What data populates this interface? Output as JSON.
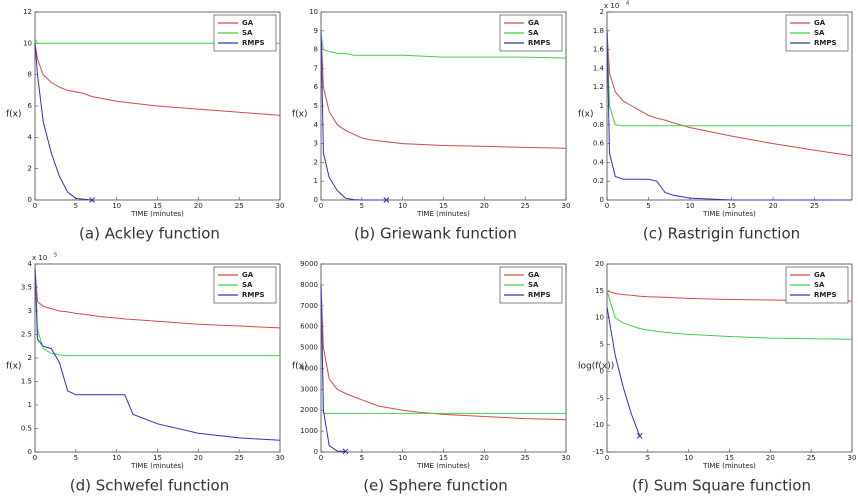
{
  "chart_data": [
    {
      "type": "line",
      "caption": "(a) Ackley function",
      "xlabel": "TIME (minutes)",
      "ylabel": "f(x)",
      "legend": "upper right",
      "x": [
        0,
        0.3,
        1,
        2,
        3,
        4,
        5,
        6,
        7,
        10,
        15,
        20,
        25,
        30
      ],
      "series": [
        {
          "name": "GA",
          "color": "#d04a4a",
          "values": [
            10,
            9,
            8,
            7.5,
            7.2,
            7,
            6.9,
            6.8,
            6.6,
            6.3,
            6.0,
            5.8,
            5.6,
            5.4
          ]
        },
        {
          "name": "SA",
          "color": "#40d040",
          "values": [
            10.3,
            10,
            10,
            10,
            10,
            10,
            10,
            10,
            10,
            10,
            10,
            10,
            10,
            10
          ]
        },
        {
          "name": "RMPS",
          "color": "#3030c0",
          "end_marker": true,
          "values": [
            10,
            8,
            5,
            3,
            1.5,
            0.5,
            0.1,
            0.05,
            0,
            null,
            null,
            null,
            null,
            null
          ]
        }
      ],
      "xlim": [
        0,
        30
      ],
      "xticks": [
        0,
        5,
        10,
        15,
        20,
        25,
        30
      ],
      "ylim": [
        0,
        12
      ],
      "yticks": [
        0,
        2,
        4,
        6,
        8,
        10,
        12
      ]
    },
    {
      "type": "line",
      "caption": "(b) Griewank function",
      "xlabel": "TIME (minutes)",
      "ylabel": "f(x)",
      "legend": "upper right",
      "x": [
        0,
        0.3,
        1,
        2,
        3,
        4,
        5,
        6,
        8,
        10,
        15,
        20,
        25,
        30
      ],
      "series": [
        {
          "name": "GA",
          "color": "#d04a4a",
          "values": [
            9,
            6,
            4.7,
            4,
            3.7,
            3.5,
            3.3,
            3.2,
            3.1,
            3.0,
            2.9,
            2.85,
            2.8,
            2.75
          ]
        },
        {
          "name": "SA",
          "color": "#40d040",
          "values": [
            8.8,
            8,
            7.9,
            7.8,
            7.8,
            7.7,
            7.7,
            7.7,
            7.7,
            7.7,
            7.6,
            7.6,
            7.6,
            7.55
          ]
        },
        {
          "name": "RMPS",
          "color": "#3030c0",
          "end_marker": true,
          "values": [
            9,
            2.5,
            1.2,
            0.5,
            0.1,
            0.02,
            0,
            0,
            0,
            null,
            null,
            null,
            null,
            null
          ]
        }
      ],
      "xlim": [
        0,
        30
      ],
      "xticks": [
        0,
        5,
        10,
        15,
        20,
        25,
        30
      ],
      "ylim": [
        0,
        10
      ],
      "yticks": [
        0,
        1,
        2,
        3,
        4,
        5,
        6,
        7,
        8,
        9,
        10
      ]
    },
    {
      "type": "line",
      "caption": "(c) Rastrigin function",
      "xlabel": "TIME (minutes)",
      "ylabel": "f(x)",
      "legend": "upper right",
      "y_multiplier": "x 10",
      "y_multiplier_exp": "4",
      "x": [
        0,
        0.3,
        1,
        2,
        3,
        4,
        5,
        6,
        7,
        8,
        10,
        15,
        20,
        25,
        29.5
      ],
      "series": [
        {
          "name": "GA",
          "color": "#d04a4a",
          "values": [
            1.8,
            1.35,
            1.15,
            1.05,
            1.0,
            0.95,
            0.9,
            0.87,
            0.85,
            0.82,
            0.77,
            0.68,
            0.6,
            0.53,
            0.47
          ]
        },
        {
          "name": "SA",
          "color": "#40d040",
          "values": [
            1.8,
            1.0,
            0.8,
            0.79,
            0.79,
            0.79,
            0.79,
            0.79,
            0.79,
            0.79,
            0.79,
            0.79,
            0.79,
            0.79,
            0.79
          ]
        },
        {
          "name": "RMPS",
          "color": "#3030c0",
          "values": [
            1.8,
            0.5,
            0.25,
            0.22,
            0.22,
            0.22,
            0.22,
            0.2,
            0.08,
            0.05,
            0.02,
            0,
            0,
            0,
            0
          ]
        }
      ],
      "xlim": [
        0,
        29.5
      ],
      "xticks": [
        0,
        5,
        10,
        15,
        20,
        25
      ],
      "ylim": [
        0,
        2
      ],
      "yticks": [
        0,
        0.2,
        0.4,
        0.6,
        0.8,
        1,
        1.2,
        1.4,
        1.6,
        1.8,
        2
      ]
    },
    {
      "type": "line",
      "caption": "(d) Schwefel function",
      "xlabel": "TIME (minutes)",
      "ylabel": "f(x)",
      "legend": "upper right",
      "y_multiplier": "x 10",
      "y_multiplier_exp": "5",
      "x": [
        0,
        0.3,
        1,
        2,
        3,
        4,
        5,
        6,
        8,
        10,
        11,
        12,
        15,
        20,
        25,
        30
      ],
      "series": [
        {
          "name": "GA",
          "color": "#d04a4a",
          "values": [
            3.9,
            3.2,
            3.1,
            3.05,
            3.0,
            2.98,
            2.95,
            2.93,
            2.88,
            2.85,
            2.83,
            2.82,
            2.78,
            2.72,
            2.68,
            2.64
          ]
        },
        {
          "name": "SA",
          "color": "#40d040",
          "values": [
            3.9,
            2.6,
            2.2,
            2.1,
            2.07,
            2.05,
            2.05,
            2.05,
            2.05,
            2.05,
            2.05,
            2.05,
            2.05,
            2.05,
            2.05,
            2.05
          ]
        },
        {
          "name": "RMPS",
          "color": "#3030c0",
          "values": [
            3.9,
            2.4,
            2.25,
            2.2,
            1.9,
            1.3,
            1.22,
            1.22,
            1.22,
            1.22,
            1.22,
            0.8,
            0.6,
            0.4,
            0.3,
            0.25
          ]
        }
      ],
      "xlim": [
        0,
        30
      ],
      "xticks": [
        0,
        5,
        10,
        15,
        20,
        25,
        30
      ],
      "ylim": [
        0,
        4
      ],
      "yticks": [
        0,
        0.5,
        1,
        1.5,
        2,
        2.5,
        3,
        3.5,
        4
      ]
    },
    {
      "type": "line",
      "caption": "(e) Sphere function",
      "xlabel": "TIME (minutes)",
      "ylabel": "f(x)",
      "legend": "upper right",
      "x": [
        0,
        0.3,
        1,
        2,
        3,
        5,
        7,
        10,
        12,
        15,
        20,
        25,
        30
      ],
      "series": [
        {
          "name": "GA",
          "color": "#d04a4a",
          "values": [
            8000,
            5000,
            3500,
            3000,
            2800,
            2500,
            2200,
            2000,
            1900,
            1800,
            1700,
            1600,
            1550
          ]
        },
        {
          "name": "SA",
          "color": "#40d040",
          "values": [
            8000,
            1850,
            1850,
            1850,
            1850,
            1850,
            1850,
            1850,
            1850,
            1850,
            1850,
            1850,
            1850
          ]
        },
        {
          "name": "RMPS",
          "color": "#3030c0",
          "end_marker": true,
          "values": [
            8000,
            2000,
            300,
            50,
            30,
            null,
            null,
            null,
            null,
            null,
            null,
            null,
            null
          ]
        }
      ],
      "xlim": [
        0,
        30
      ],
      "xticks": [
        0,
        5,
        10,
        15,
        20,
        25,
        30
      ],
      "ylim": [
        0,
        9000
      ],
      "yticks": [
        0,
        1000,
        2000,
        3000,
        4000,
        5000,
        6000,
        7000,
        8000,
        9000
      ]
    },
    {
      "type": "line",
      "caption": "(f) Sum Square function",
      "xlabel": "TIME (minutes)",
      "ylabel": "log(f(x))",
      "legend": "upper right",
      "x": [
        0,
        1,
        2,
        3,
        4,
        5,
        7,
        10,
        15,
        20,
        25,
        30
      ],
      "series": [
        {
          "name": "GA",
          "color": "#d04a4a",
          "values": [
            15,
            14.5,
            14.3,
            14.2,
            14,
            13.9,
            13.8,
            13.6,
            13.4,
            13.3,
            13.2,
            13.1
          ]
        },
        {
          "name": "SA",
          "color": "#40d040",
          "values": [
            15,
            10,
            9,
            8.5,
            8,
            7.7,
            7.3,
            6.9,
            6.5,
            6.2,
            6.1,
            6.0
          ]
        },
        {
          "name": "RMPS",
          "color": "#3030c0",
          "end_marker": true,
          "values": [
            12,
            3,
            -3,
            -8,
            -12,
            null,
            null,
            null,
            null,
            null,
            null,
            null
          ]
        }
      ],
      "xlim": [
        0,
        30
      ],
      "xticks": [
        0,
        5,
        10,
        15,
        20,
        25,
        30
      ],
      "ylim": [
        -15,
        20
      ],
      "yticks": [
        -15,
        -10,
        -5,
        0,
        5,
        10,
        15,
        20
      ]
    }
  ]
}
